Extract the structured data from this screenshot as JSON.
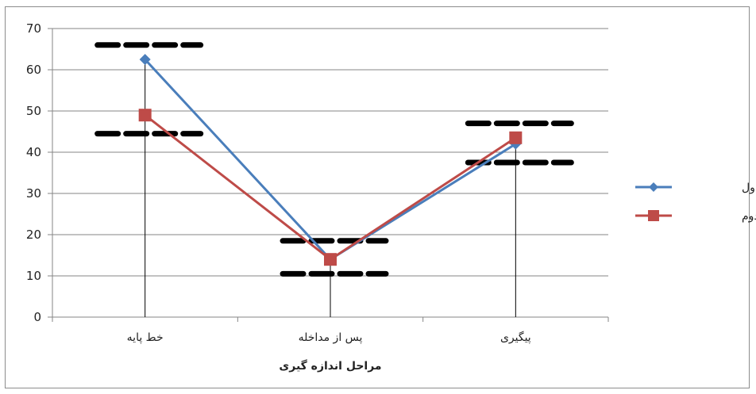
{
  "chart_data": {
    "type": "line",
    "categories": [
      "خط پایه",
      "پس از مداخله",
      "پیگیری"
    ],
    "series": [
      {
        "name": "آزمودنی اول",
        "values": [
          62.5,
          14,
          42
        ],
        "color": "#4a7ebb",
        "marker": "diamond"
      },
      {
        "name": "آزمودنی دوم",
        "values": [
          49,
          14,
          43.5
        ],
        "color": "#be4b48",
        "marker": "square"
      }
    ],
    "xlabel": "مراحل اندازه گیری",
    "ylabel": "",
    "ylim": [
      0,
      70
    ],
    "yticks": [
      0,
      10,
      20,
      30,
      40,
      50,
      60,
      70
    ],
    "grid": true,
    "legend_position": "right",
    "reference_bands": [
      {
        "category": "خط پایه",
        "upper": 66,
        "lower": 44.5
      },
      {
        "category": "پس از مداخله",
        "upper": 18.5,
        "lower": 10.5
      },
      {
        "category": "پیگیری",
        "upper": 47,
        "lower": 37.5
      }
    ]
  }
}
